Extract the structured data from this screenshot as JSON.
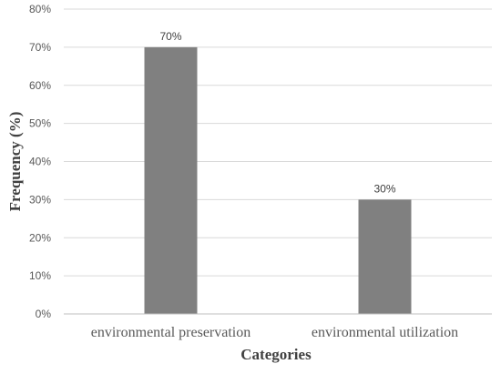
{
  "chart_data": {
    "type": "bar",
    "categories": [
      "environmental preservation",
      "environmental utilization"
    ],
    "values": [
      70,
      30
    ],
    "data_labels": [
      "70%",
      "30%"
    ],
    "title": "",
    "xlabel": "Categories",
    "ylabel": "Frequency (%)",
    "ylim": [
      0,
      80
    ],
    "yticks": [
      0,
      10,
      20,
      30,
      40,
      50,
      60,
      70,
      80
    ],
    "ytick_labels": [
      "0%",
      "10%",
      "20%",
      "30%",
      "40%",
      "50%",
      "60%",
      "70%",
      "80%"
    ],
    "grid": true,
    "legend": "none",
    "colors": {
      "bar": "#808080",
      "grid": "#d9d9d9",
      "axis": "#bfbfbf",
      "text": "#595959",
      "axis_title": "#404040"
    }
  }
}
